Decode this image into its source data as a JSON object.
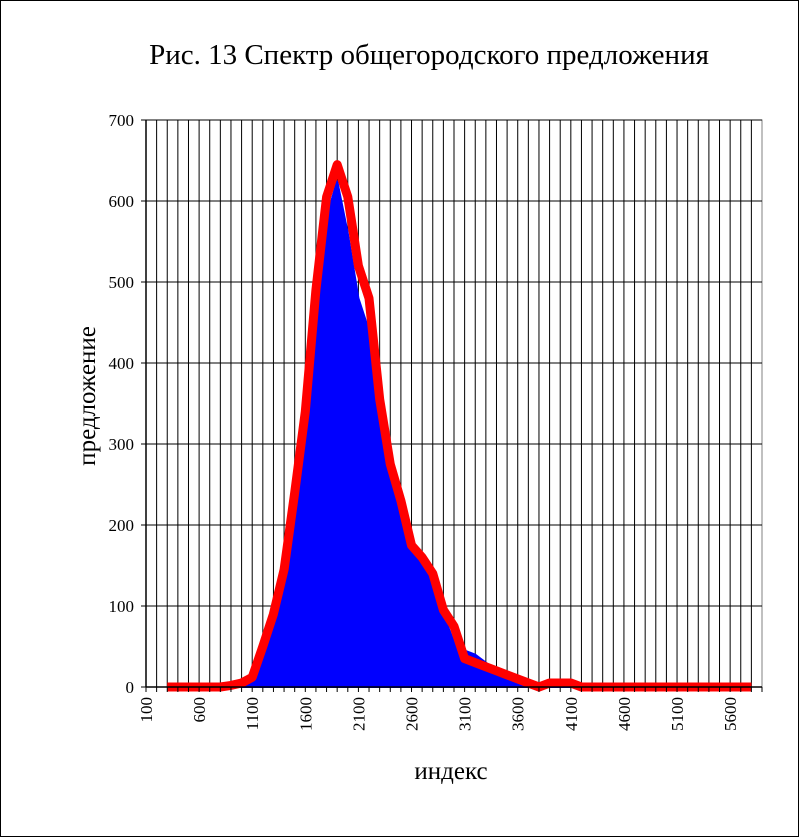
{
  "chart_data": {
    "type": "line",
    "title": "Рис. 13 Спектр общегородского предложения",
    "xlabel": "индекс",
    "ylabel": "предложение",
    "xlim": [
      100,
      5900
    ],
    "ylim": [
      0,
      700
    ],
    "x_ticks": [
      "100",
      "600",
      "1100",
      "1600",
      "2100",
      "2600",
      "3100",
      "3600",
      "4100",
      "4600",
      "5100",
      "5600"
    ],
    "y_ticks": [
      "0",
      "100",
      "200",
      "300",
      "400",
      "500",
      "600",
      "700"
    ],
    "grid": true,
    "legend": "none",
    "series": [
      {
        "color": "#0000ff",
        "x": [
          300,
          400,
          500,
          600,
          700,
          800,
          900,
          1000,
          1100,
          1200,
          1300,
          1400,
          1500,
          1600,
          1700,
          1800,
          1900,
          2000,
          2100,
          2200,
          2300,
          2400,
          2500,
          2600,
          2700,
          2800,
          2900,
          3000,
          3100,
          3200,
          3300,
          3400,
          3500,
          3600,
          3700,
          3800,
          3900,
          4000,
          4100,
          4200,
          4300,
          4400,
          4500,
          4600,
          4700,
          4800,
          4900,
          5000,
          5100,
          5200,
          5300,
          5400,
          5500,
          5600,
          5700,
          5800
        ],
        "y": [
          0,
          0,
          0,
          0,
          0,
          0,
          2,
          5,
          12,
          40,
          75,
          140,
          230,
          330,
          460,
          580,
          625,
          560,
          480,
          440,
          350,
          275,
          230,
          170,
          150,
          140,
          90,
          55,
          45,
          40,
          30,
          20,
          8,
          5,
          2,
          2,
          2,
          3,
          5,
          4,
          2,
          0,
          0,
          0,
          0,
          0,
          0,
          0,
          0,
          0,
          0,
          0,
          0,
          0,
          0,
          0
        ]
      },
      {
        "color": "#ff0000",
        "x": [
          300,
          400,
          500,
          600,
          700,
          800,
          900,
          1000,
          1100,
          1200,
          1300,
          1400,
          1500,
          1600,
          1700,
          1800,
          1900,
          2000,
          2100,
          2200,
          2300,
          2400,
          2500,
          2600,
          2700,
          2800,
          2900,
          3000,
          3100,
          3200,
          3300,
          3400,
          3500,
          3600,
          3700,
          3800,
          3900,
          4000,
          4100,
          4200,
          4300,
          4400,
          4500,
          4600,
          4700,
          4800,
          4900,
          5000,
          5100,
          5200,
          5300,
          5400,
          5500,
          5600,
          5700,
          5800
        ],
        "y": [
          0,
          0,
          0,
          0,
          0,
          0,
          2,
          5,
          12,
          50,
          90,
          145,
          240,
          340,
          490,
          605,
          645,
          605,
          520,
          480,
          355,
          275,
          230,
          175,
          160,
          140,
          95,
          75,
          35,
          30,
          25,
          20,
          15,
          10,
          5,
          0,
          5,
          5,
          5,
          0,
          0,
          0,
          0,
          0,
          0,
          0,
          0,
          0,
          0,
          0,
          0,
          0,
          0,
          0,
          0,
          0
        ]
      }
    ]
  }
}
